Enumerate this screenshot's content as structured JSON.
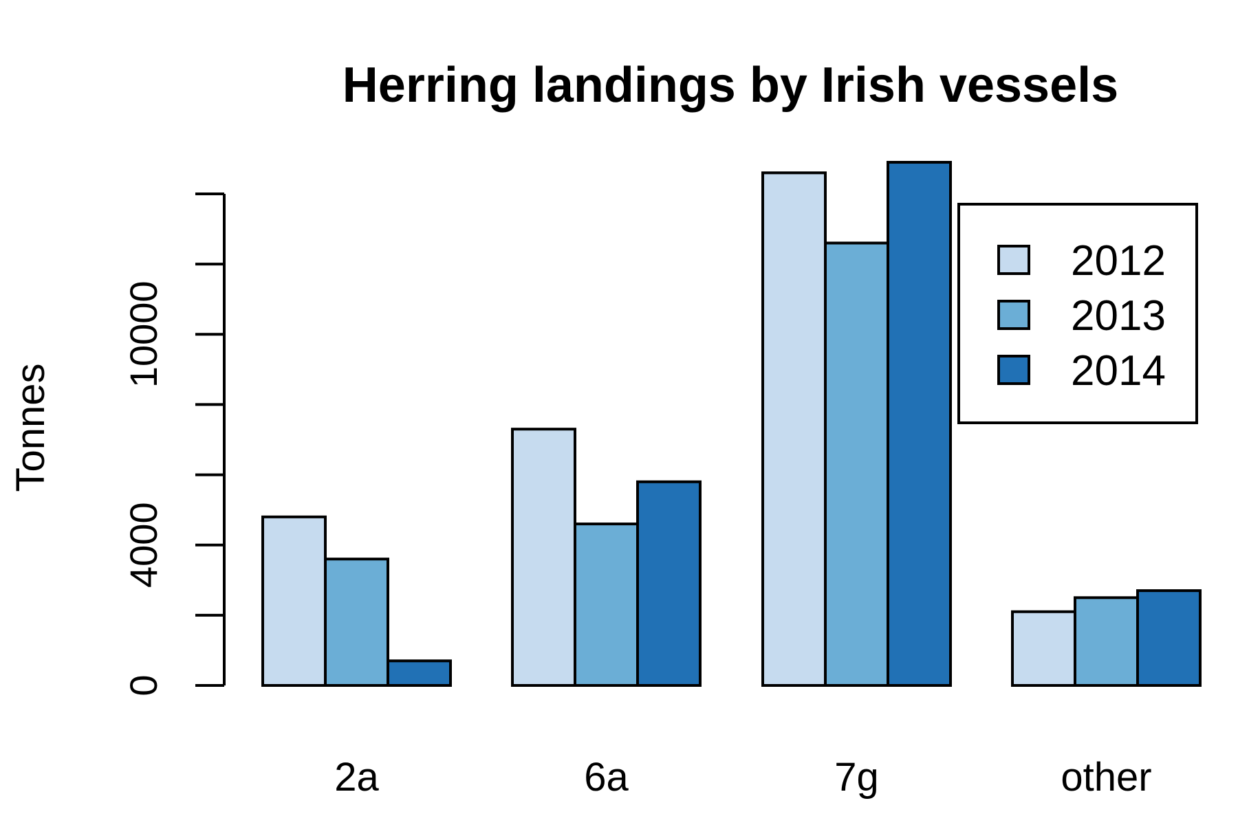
{
  "chart_data": {
    "type": "bar",
    "title": "Herring landings by Irish vessels",
    "xlabel": "",
    "ylabel": "Tonnes",
    "categories": [
      "2a",
      "6a",
      "7g",
      "other"
    ],
    "series": [
      {
        "name": "2012",
        "color": "#C6DBEF",
        "values": [
          4800,
          7300,
          14600,
          2100
        ]
      },
      {
        "name": "2013",
        "color": "#6BAED6",
        "values": [
          3600,
          4600,
          12600,
          2500
        ]
      },
      {
        "name": "2014",
        "color": "#2171B5",
        "values": [
          700,
          5800,
          14900,
          2700
        ]
      }
    ],
    "ylim": [
      0,
      14000
    ],
    "yticks": [
      0,
      2000,
      4000,
      6000,
      8000,
      10000,
      12000,
      14000
    ],
    "ytick_labels": [
      {
        "value": 0,
        "label": "0"
      },
      {
        "value": 4000,
        "label": "4000"
      },
      {
        "value": 10000,
        "label": "10000"
      }
    ],
    "legend_position": "top-right",
    "grid": false
  }
}
